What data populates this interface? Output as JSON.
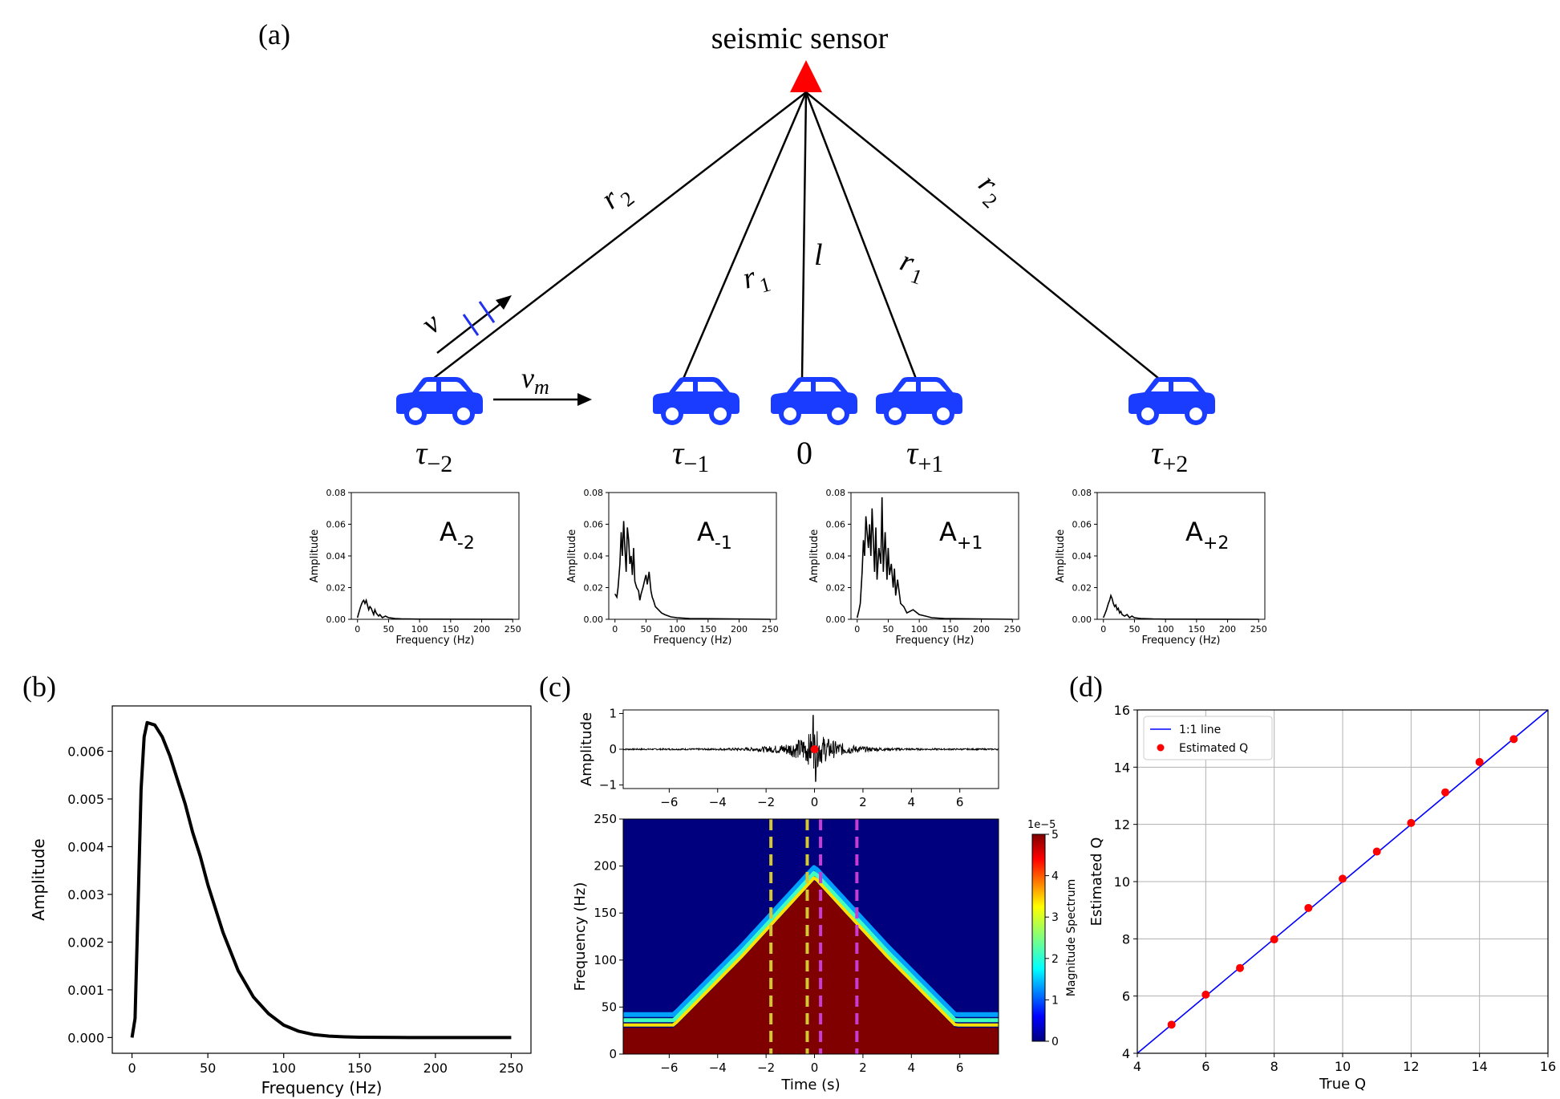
{
  "panel_labels": {
    "a": "(a)",
    "b": "(b)",
    "c": "(c)",
    "d": "(d)"
  },
  "schematic": {
    "sensor_label": "seismic sensor",
    "sensor_color": "#ff0000",
    "car_color": "#1a3cff",
    "distance_labels": {
      "r2_left": "r",
      "r2_left_sub": "2",
      "r1_left": "r",
      "r1_left_sub": "1",
      "l": "l",
      "r1_right": "r",
      "r1_right_sub": "1",
      "r2_right": "r",
      "r2_right_sub": "2"
    },
    "velocity_label": "v",
    "vm_label": "v",
    "vm_sub": "m",
    "positions": [
      {
        "base": "τ",
        "sub": "−2"
      },
      {
        "base": "τ",
        "sub": "−1"
      },
      {
        "base": "0",
        "sub": ""
      },
      {
        "base": "τ",
        "sub": "+1"
      },
      {
        "base": "τ",
        "sub": "+2"
      }
    ]
  },
  "chart_data": [
    {
      "id": "spectra-small",
      "type": "line",
      "xlabel": "Frequency (Hz)",
      "ylabel": "Amplitude",
      "xlim": [
        -10,
        260
      ],
      "ylim": [
        0,
        0.08
      ],
      "xticks": [
        0,
        50,
        100,
        150,
        200,
        250
      ],
      "yticks": [
        "0.00",
        "0.02",
        "0.04",
        "0.06",
        "0.08"
      ],
      "panels": [
        {
          "label": "A",
          "label_sub": "-2",
          "peak": 0.012,
          "freq": [
            0,
            2,
            5,
            8,
            10,
            12,
            14,
            16,
            18,
            20,
            22,
            24,
            26,
            28,
            30,
            32,
            34,
            36,
            40,
            45,
            50,
            55,
            60,
            70,
            80,
            100,
            250
          ],
          "amp": [
            0.001,
            0.004,
            0.008,
            0.011,
            0.012,
            0.01,
            0.012,
            0.009,
            0.006,
            0.008,
            0.007,
            0.005,
            0.003,
            0.006,
            0.004,
            0.003,
            0.002,
            0.003,
            0.001,
            0.002,
            0.001,
            0.0008,
            0.0005,
            0.0003,
            0.0002,
            0.0001,
            0.0
          ]
        },
        {
          "label": "A",
          "label_sub": "-1",
          "peak": 0.062,
          "freq": [
            0,
            3,
            5,
            8,
            10,
            12,
            14,
            16,
            18,
            20,
            22,
            24,
            26,
            28,
            30,
            32,
            35,
            38,
            40,
            42,
            45,
            48,
            50,
            52,
            55,
            58,
            60,
            62,
            65,
            70,
            75,
            80,
            90,
            100,
            120,
            250
          ],
          "amp": [
            0.016,
            0.014,
            0.02,
            0.035,
            0.055,
            0.04,
            0.062,
            0.045,
            0.03,
            0.058,
            0.05,
            0.035,
            0.04,
            0.028,
            0.045,
            0.024,
            0.02,
            0.018,
            0.012,
            0.016,
            0.02,
            0.025,
            0.028,
            0.022,
            0.03,
            0.018,
            0.014,
            0.012,
            0.008,
            0.006,
            0.004,
            0.003,
            0.0015,
            0.001,
            0.0005,
            0.0
          ]
        },
        {
          "label": "A",
          "label_sub": "+1",
          "peak": 0.077,
          "freq": [
            0,
            3,
            5,
            8,
            10,
            12,
            14,
            16,
            18,
            20,
            22,
            24,
            26,
            28,
            30,
            32,
            35,
            38,
            40,
            42,
            45,
            48,
            50,
            52,
            55,
            58,
            60,
            62,
            65,
            70,
            75,
            80,
            90,
            100,
            110,
            120,
            140,
            250
          ],
          "amp": [
            0.001,
            0.006,
            0.01,
            0.03,
            0.05,
            0.04,
            0.065,
            0.055,
            0.045,
            0.06,
            0.04,
            0.07,
            0.05,
            0.03,
            0.058,
            0.025,
            0.045,
            0.035,
            0.077,
            0.03,
            0.055,
            0.025,
            0.045,
            0.028,
            0.035,
            0.02,
            0.032,
            0.015,
            0.025,
            0.01,
            0.008,
            0.004,
            0.006,
            0.003,
            0.002,
            0.001,
            0.0005,
            0.0
          ]
        },
        {
          "label": "A",
          "label_sub": "+2",
          "peak": 0.015,
          "freq": [
            0,
            2,
            5,
            8,
            10,
            12,
            14,
            16,
            18,
            20,
            22,
            24,
            26,
            28,
            30,
            34,
            38,
            42,
            46,
            50,
            60,
            80,
            100,
            250
          ],
          "amp": [
            0.001,
            0.003,
            0.006,
            0.01,
            0.012,
            0.015,
            0.013,
            0.01,
            0.008,
            0.009,
            0.006,
            0.007,
            0.004,
            0.005,
            0.003,
            0.002,
            0.003,
            0.001,
            0.002,
            0.001,
            0.0005,
            0.0002,
            0.0001,
            0.0
          ]
        }
      ]
    },
    {
      "id": "panel-b",
      "type": "line",
      "xlabel": "Frequency (Hz)",
      "ylabel": "Amplitude",
      "xlim": [
        -13,
        263
      ],
      "ylim": [
        -0.00033,
        0.00695
      ],
      "xticks": [
        0,
        50,
        100,
        150,
        200,
        250
      ],
      "yticks": [
        "0.000",
        "0.001",
        "0.002",
        "0.003",
        "0.004",
        "0.005",
        "0.006"
      ],
      "series": [
        {
          "x": [
            0,
            2,
            4,
            6,
            8,
            10,
            15,
            20,
            25,
            30,
            35,
            40,
            45,
            50,
            60,
            70,
            80,
            90,
            100,
            110,
            120,
            130,
            140,
            150,
            175,
            200,
            250
          ],
          "y": [
            0.0,
            0.0004,
            0.0028,
            0.0052,
            0.0063,
            0.0066,
            0.00655,
            0.0063,
            0.0059,
            0.0054,
            0.0049,
            0.0043,
            0.0038,
            0.0032,
            0.0022,
            0.0014,
            0.00085,
            0.0005,
            0.00026,
            0.00013,
            6e-05,
            3e-05,
            1.5e-05,
            6e-06,
            1e-06,
            0.0,
            0.0
          ]
        }
      ]
    },
    {
      "id": "panel-c-top",
      "type": "line",
      "xlabel": "",
      "ylabel": "Amplitude",
      "xlim": [
        -7.9,
        7.6
      ],
      "ylim": [
        -1.1,
        1.1
      ],
      "xticks": [
        -6,
        -4,
        -2,
        0,
        2,
        4,
        6
      ],
      "yticks": [
        "−1",
        "0",
        "1"
      ],
      "marker": {
        "x": 0,
        "y": 0,
        "color": "#ff0000"
      }
    },
    {
      "id": "panel-c-bottom",
      "type": "heatmap",
      "xlabel": "Time (s)",
      "ylabel": "Frequency (Hz)",
      "xlim": [
        -7.9,
        7.6
      ],
      "ylim": [
        0,
        250
      ],
      "xticks": [
        -6,
        -4,
        -2,
        0,
        2,
        4,
        6
      ],
      "yticks": [
        0,
        50,
        100,
        150,
        200,
        250
      ],
      "colorbar_label": "Magnitude Spectrum",
      "colorbar_exponent": "1e−5",
      "colorbar_ticks": [
        0,
        1,
        2,
        3,
        4,
        5
      ],
      "vlines": [
        {
          "x": -1.8,
          "color": "#d4c832"
        },
        {
          "x": -0.3,
          "color": "#d4c832"
        },
        {
          "x": 0.25,
          "color": "#c83cd4"
        },
        {
          "x": 1.75,
          "color": "#c83cd4"
        }
      ]
    },
    {
      "id": "panel-d",
      "type": "scatter",
      "xlabel": "True Q",
      "ylabel": "Estimated Q",
      "xlim": [
        4,
        16
      ],
      "ylim": [
        4,
        16
      ],
      "xticks": [
        4,
        6,
        8,
        10,
        12,
        14,
        16
      ],
      "yticks": [
        4,
        6,
        8,
        10,
        12,
        14,
        16
      ],
      "grid": true,
      "legend_position": "upper-left",
      "series": [
        {
          "name": "1:1 line",
          "kind": "line",
          "color": "#0000ff",
          "x": [
            4,
            16
          ],
          "y": [
            4,
            16
          ]
        },
        {
          "name": "Estimated Q",
          "kind": "points",
          "color": "#ff0000",
          "x": [
            5,
            6,
            7,
            8,
            9,
            10,
            11,
            12,
            13,
            14,
            15
          ],
          "y": [
            5.0,
            6.05,
            6.98,
            7.98,
            9.08,
            10.1,
            11.05,
            12.05,
            13.12,
            14.18,
            14.98
          ]
        }
      ]
    }
  ]
}
